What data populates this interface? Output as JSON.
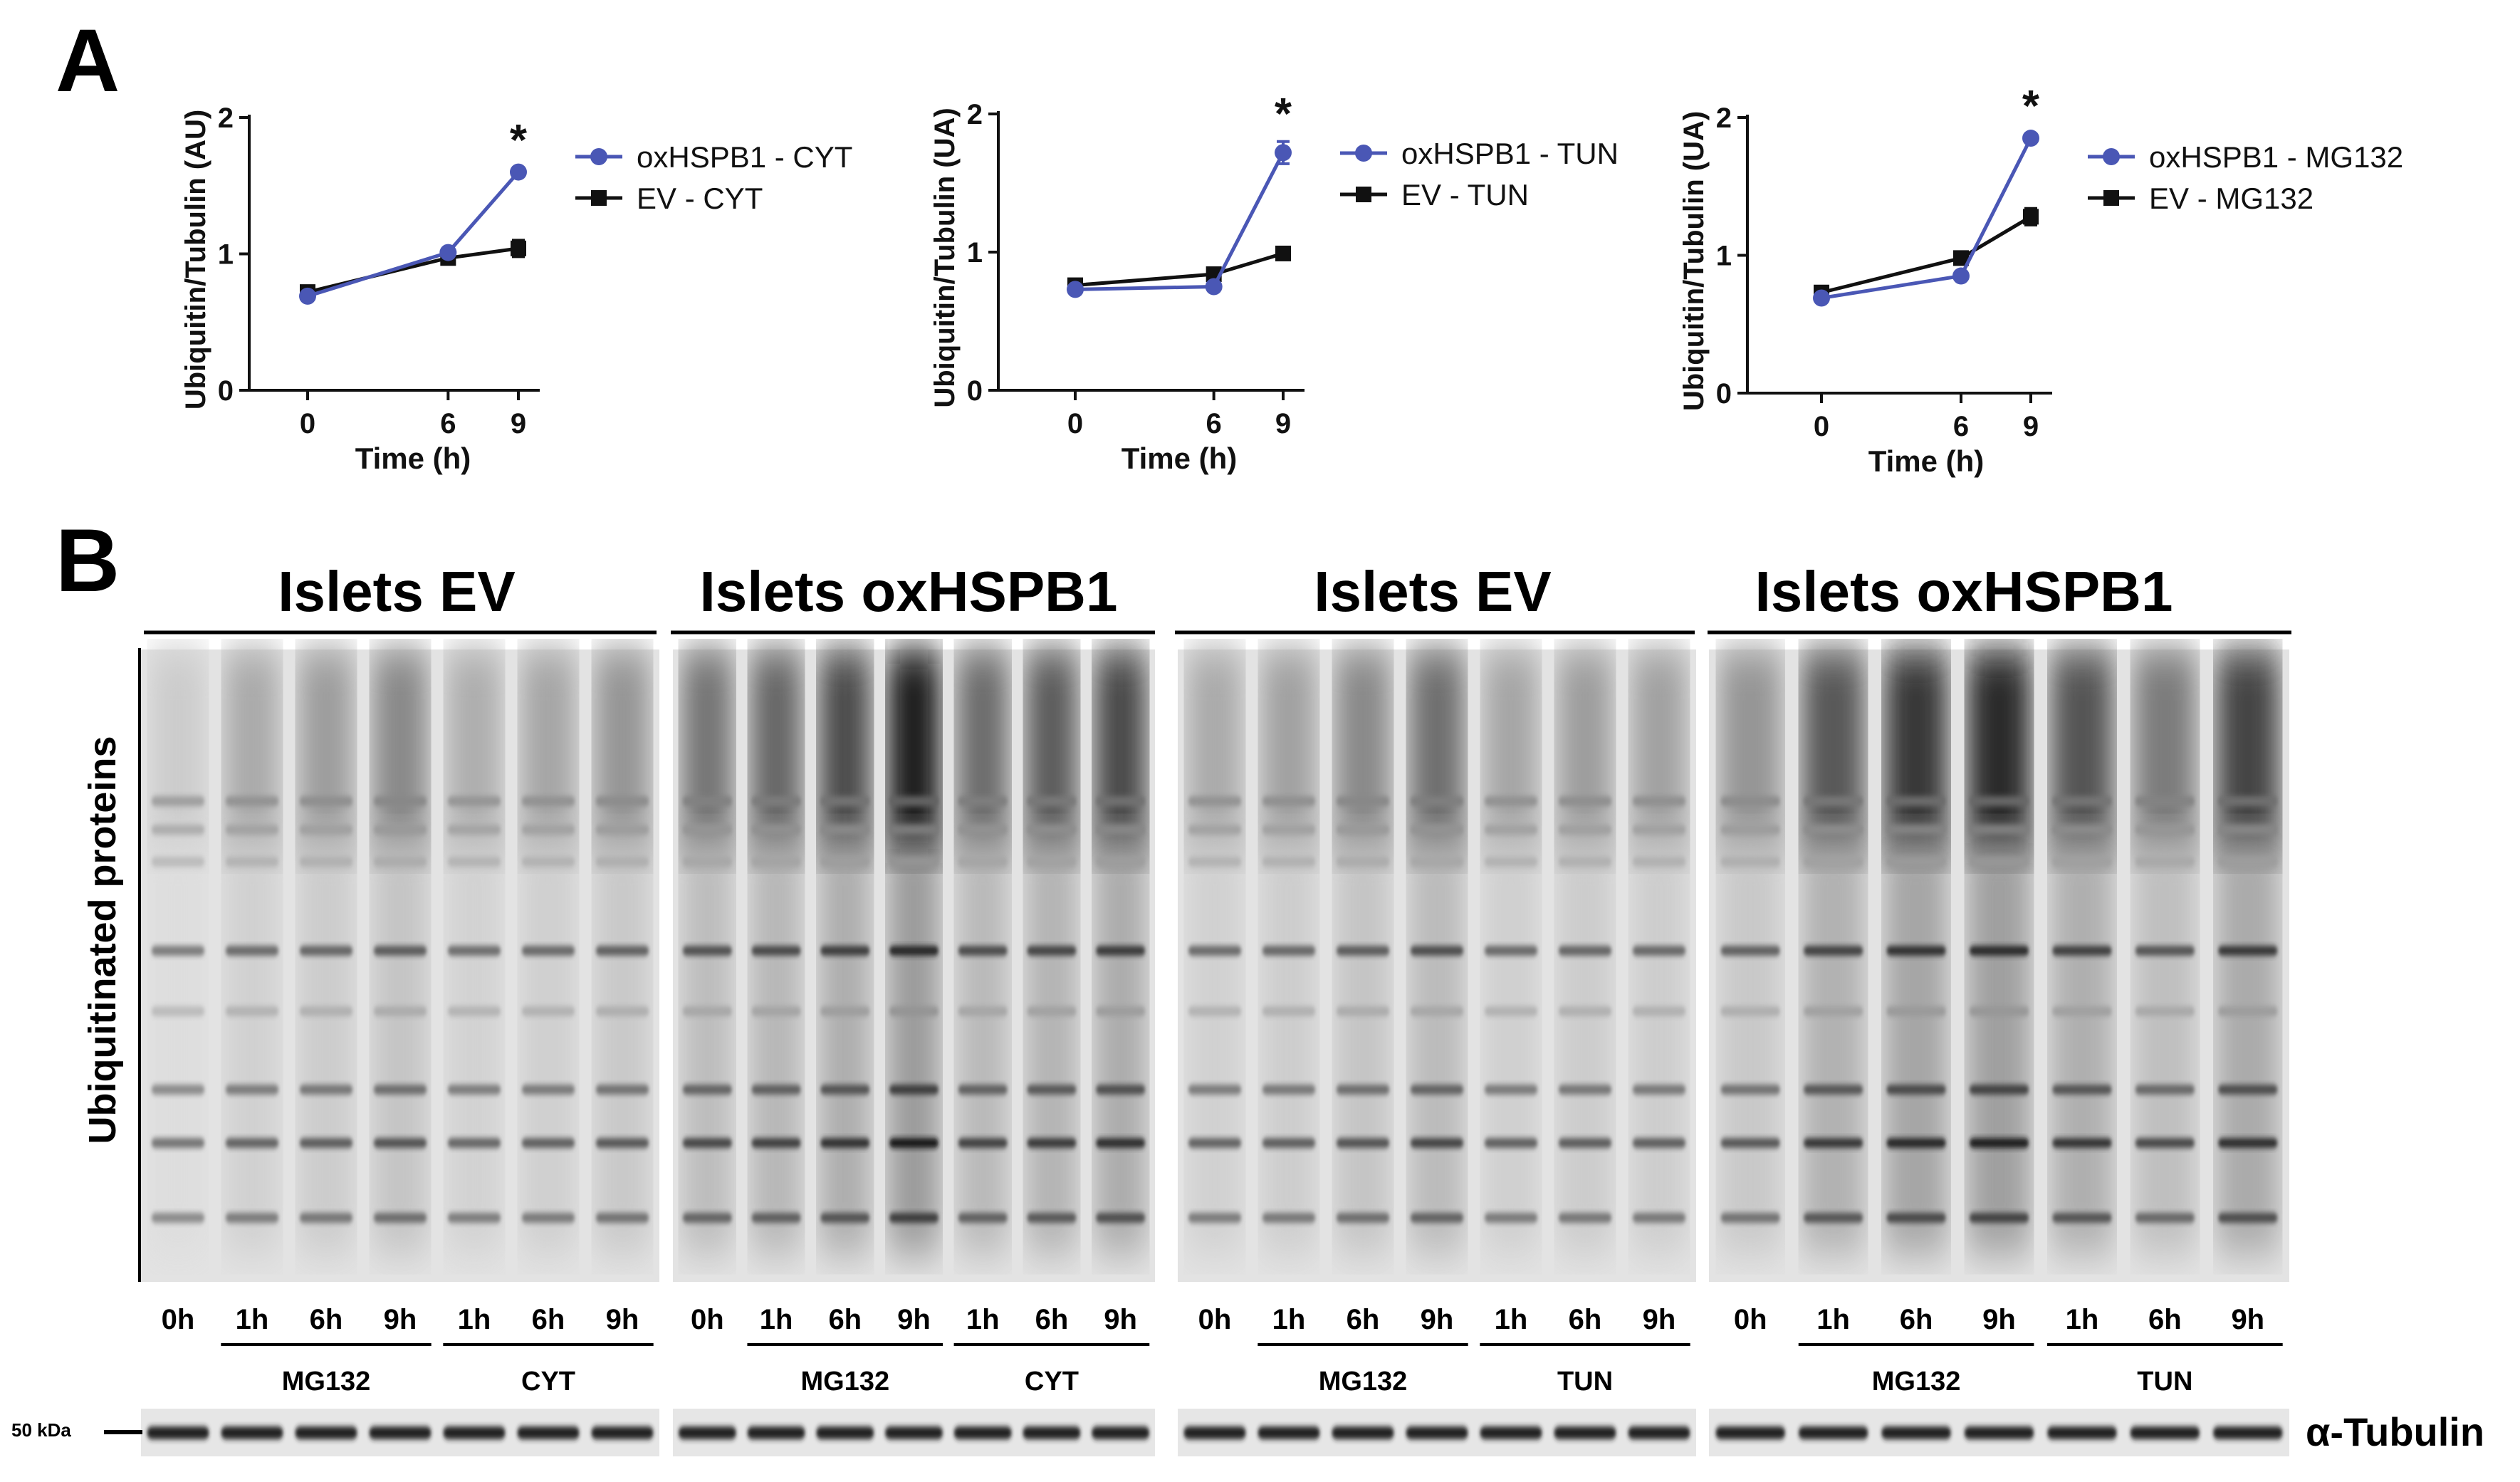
{
  "figure": {
    "panel_a_letter": "A",
    "panel_b_letter": "B"
  },
  "colors": {
    "ox_series": "#4a57b5",
    "ev_series": "#111111",
    "axis": "#111111",
    "blot_bg": "#e4e4e4",
    "band": "#1a1a1a"
  },
  "chart_data": [
    {
      "type": "line",
      "title": "",
      "xlabel": "Time (h)",
      "ylabel": "Ubiquitin/Tubulin (AU)",
      "x": [
        0,
        6,
        9
      ],
      "x_tick_labels": [
        "0",
        "6",
        "9"
      ],
      "y_ticks": [
        0,
        1,
        2
      ],
      "ylim": [
        0,
        2
      ],
      "series": [
        {
          "name": "oxHSPB1 - CYT",
          "color": "#4a57b5",
          "marker": "circle",
          "values": [
            0.69,
            1.01,
            1.6
          ],
          "errors": [
            0.03,
            0.03,
            0.03
          ]
        },
        {
          "name": "EV - CYT",
          "color": "#111111",
          "marker": "square",
          "values": [
            0.72,
            0.97,
            1.04
          ],
          "errors": [
            0.02,
            0.03,
            0.06
          ]
        }
      ],
      "annotations": [
        {
          "text": "*",
          "x": 9
        }
      ],
      "legend": "right"
    },
    {
      "type": "line",
      "title": "",
      "xlabel": "Time (h)",
      "ylabel": "Ubiquitin/Tubulin (UA)",
      "x": [
        0,
        6,
        9
      ],
      "x_tick_labels": [
        "0",
        "6",
        "9"
      ],
      "y_ticks": [
        0,
        1,
        2
      ],
      "ylim": [
        0,
        2
      ],
      "series": [
        {
          "name": "oxHSPB1 - TUN",
          "color": "#4a57b5",
          "marker": "circle",
          "values": [
            0.73,
            0.75,
            1.72
          ],
          "errors": [
            0.03,
            0.03,
            0.08
          ]
        },
        {
          "name": "EV - TUN",
          "color": "#111111",
          "marker": "square",
          "values": [
            0.76,
            0.84,
            0.99
          ],
          "errors": [
            0.02,
            0.03,
            0.02
          ]
        }
      ],
      "annotations": [
        {
          "text": "*",
          "x": 9
        }
      ],
      "legend": "right"
    },
    {
      "type": "line",
      "title": "",
      "xlabel": "Time (h)",
      "ylabel": "Ubiquitin/Tubulin (UA)",
      "x": [
        0,
        6,
        9
      ],
      "x_tick_labels": [
        "0",
        "6",
        "9"
      ],
      "y_ticks": [
        0,
        1,
        2
      ],
      "ylim": [
        0,
        2
      ],
      "series": [
        {
          "name": "oxHSPB1 - MG132",
          "color": "#4a57b5",
          "marker": "circle",
          "values": [
            0.69,
            0.85,
            1.85
          ],
          "errors": [
            0.03,
            0.03,
            0.03
          ]
        },
        {
          "name": "EV - MG132",
          "color": "#111111",
          "marker": "square",
          "values": [
            0.73,
            0.98,
            1.28
          ],
          "errors": [
            0.02,
            0.03,
            0.06
          ]
        }
      ],
      "annotations": [
        {
          "text": "*",
          "x": 9
        }
      ],
      "legend": "right"
    }
  ],
  "blot": {
    "y_axis_label": "Ubiquitinated proteins",
    "marker_label": "50 kDa",
    "tubulin_label": "α-Tubulin",
    "groups": [
      {
        "title": "Islets EV",
        "lanes": [
          "0h",
          "1h",
          "6h",
          "9h",
          "1h",
          "6h",
          "9h"
        ],
        "treatments": [
          "MG132",
          "CYT"
        ],
        "intensity": [
          0.15,
          0.32,
          0.38,
          0.48,
          0.3,
          0.34,
          0.42
        ]
      },
      {
        "title": "Islets oxHSPB1",
        "lanes": [
          "0h",
          "1h",
          "6h",
          "9h",
          "1h",
          "6h",
          "9h"
        ],
        "treatments": [
          "MG132",
          "CYT"
        ],
        "intensity": [
          0.58,
          0.65,
          0.78,
          1.0,
          0.62,
          0.7,
          0.8
        ]
      },
      {
        "title": "Islets EV",
        "lanes": [
          "0h",
          "1h",
          "6h",
          "9h",
          "1h",
          "6h",
          "9h"
        ],
        "treatments": [
          "MG132",
          "TUN"
        ],
        "intensity": [
          0.32,
          0.36,
          0.48,
          0.6,
          0.34,
          0.38,
          0.36
        ]
      },
      {
        "title": "Islets oxHSPB1",
        "lanes": [
          "0h",
          "1h",
          "6h",
          "9h",
          "1h",
          "6h",
          "9h"
        ],
        "treatments": [
          "MG132",
          "TUN"
        ],
        "intensity": [
          0.42,
          0.72,
          0.88,
          0.95,
          0.74,
          0.55,
          0.82
        ]
      }
    ]
  }
}
